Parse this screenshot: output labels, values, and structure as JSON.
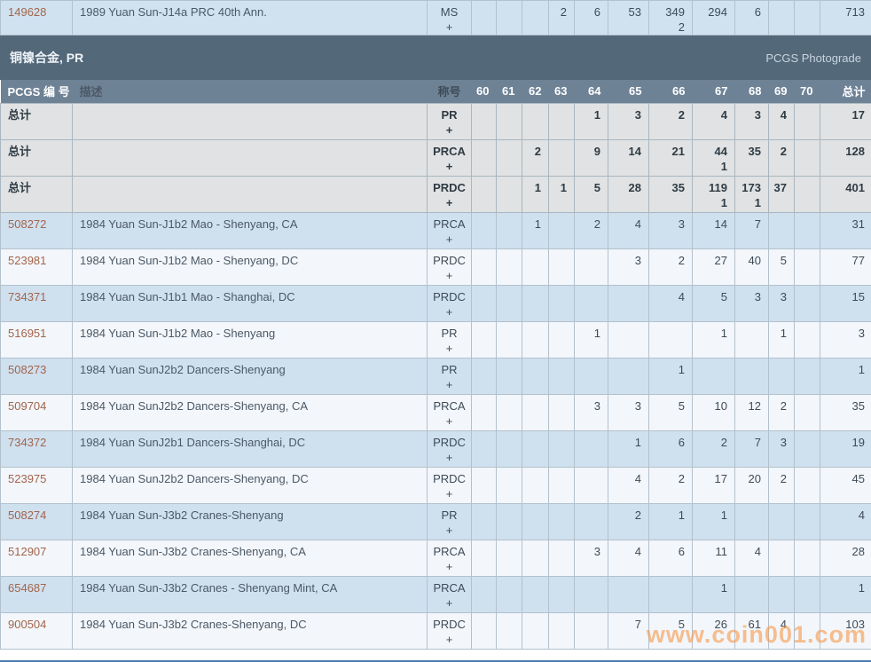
{
  "section": {
    "title": "铜镍合金, PR",
    "right_label": "PCGS Photograde"
  },
  "watermark": "www.coin001.com",
  "plus_sign": "+",
  "columns": {
    "pcgs": "PCGS 编 号",
    "description": "描述",
    "designation": "称号",
    "total": "总计",
    "grades": [
      "60",
      "61",
      "62",
      "63",
      "64",
      "65",
      "66",
      "67",
      "68",
      "69",
      "70"
    ]
  },
  "totals_label": "总计",
  "top_row": {
    "pcgs": "149628",
    "desc": "1989 Yuan Sun-J14a PRC 40th Ann.",
    "designation": "MS",
    "values": [
      "",
      "",
      "",
      "2",
      "6",
      "53",
      "349",
      "294",
      "6",
      "",
      ""
    ],
    "subs": [
      "",
      "",
      "",
      "",
      "",
      "",
      "2",
      "",
      "",
      "",
      ""
    ],
    "total": "713"
  },
  "rows": [
    {
      "kind": "totals",
      "pcgs": "总计",
      "desc": "",
      "designation": "PR",
      "values": [
        "",
        "",
        "",
        "",
        "1",
        "3",
        "2",
        "4",
        "3",
        "4",
        ""
      ],
      "subs": [
        "",
        "",
        "",
        "",
        "",
        "",
        "",
        "",
        "",
        "",
        ""
      ],
      "total": "17"
    },
    {
      "kind": "totals",
      "pcgs": "总计",
      "desc": "",
      "designation": "PRCA",
      "values": [
        "",
        "",
        "2",
        "",
        "9",
        "14",
        "21",
        "44",
        "35",
        "2",
        ""
      ],
      "subs": [
        "",
        "",
        "",
        "",
        "",
        "",
        "",
        "1",
        "",
        "",
        ""
      ],
      "total": "128"
    },
    {
      "kind": "totals",
      "pcgs": "总计",
      "desc": "",
      "designation": "PRDC",
      "values": [
        "",
        "",
        "1",
        "1",
        "5",
        "28",
        "35",
        "119",
        "173",
        "37",
        ""
      ],
      "subs": [
        "",
        "",
        "",
        "",
        "",
        "",
        "",
        "1",
        "1",
        "",
        ""
      ],
      "total": "401"
    },
    {
      "kind": "data",
      "pcgs": "508272",
      "desc": "1984 Yuan Sun-J1b2 Mao - Shenyang, CA",
      "designation": "PRCA",
      "values": [
        "",
        "",
        "1",
        "",
        "2",
        "4",
        "3",
        "14",
        "7",
        "",
        ""
      ],
      "total": "31"
    },
    {
      "kind": "data",
      "pcgs": "523981",
      "desc": "1984 Yuan Sun-J1b2 Mao - Shenyang, DC",
      "designation": "PRDC",
      "values": [
        "",
        "",
        "",
        "",
        "",
        "3",
        "2",
        "27",
        "40",
        "5",
        ""
      ],
      "total": "77"
    },
    {
      "kind": "data",
      "pcgs": "734371",
      "desc": "1984 Yuan Sun-J1b1 Mao - Shanghai, DC",
      "designation": "PRDC",
      "values": [
        "",
        "",
        "",
        "",
        "",
        "",
        "4",
        "5",
        "3",
        "3",
        ""
      ],
      "total": "15"
    },
    {
      "kind": "data",
      "pcgs": "516951",
      "desc": "1984 Yuan Sun-J1b2 Mao - Shenyang",
      "designation": "PR",
      "values": [
        "",
        "",
        "",
        "",
        "1",
        "",
        "",
        "1",
        "",
        "1",
        ""
      ],
      "total": "3"
    },
    {
      "kind": "data",
      "pcgs": "508273",
      "desc": "1984 Yuan SunJ2b2 Dancers-Shenyang",
      "designation": "PR",
      "values": [
        "",
        "",
        "",
        "",
        "",
        "",
        "1",
        "",
        "",
        "",
        ""
      ],
      "total": "1"
    },
    {
      "kind": "data",
      "pcgs": "509704",
      "desc": "1984 Yuan SunJ2b2 Dancers-Shenyang, CA",
      "designation": "PRCA",
      "values": [
        "",
        "",
        "",
        "",
        "3",
        "3",
        "5",
        "10",
        "12",
        "2",
        ""
      ],
      "total": "35"
    },
    {
      "kind": "data",
      "pcgs": "734372",
      "desc": "1984 Yuan SunJ2b1 Dancers-Shanghai, DC",
      "designation": "PRDC",
      "values": [
        "",
        "",
        "",
        "",
        "",
        "1",
        "6",
        "2",
        "7",
        "3",
        ""
      ],
      "total": "19"
    },
    {
      "kind": "data",
      "pcgs": "523975",
      "desc": "1984 Yuan SunJ2b2 Dancers-Shenyang, DC",
      "designation": "PRDC",
      "values": [
        "",
        "",
        "",
        "",
        "",
        "4",
        "2",
        "17",
        "20",
        "2",
        ""
      ],
      "total": "45"
    },
    {
      "kind": "data",
      "pcgs": "508274",
      "desc": "1984 Yuan Sun-J3b2 Cranes-Shenyang",
      "designation": "PR",
      "values": [
        "",
        "",
        "",
        "",
        "",
        "2",
        "1",
        "1",
        "",
        "",
        ""
      ],
      "total": "4"
    },
    {
      "kind": "data",
      "pcgs": "512907",
      "desc": "1984 Yuan Sun-J3b2 Cranes-Shenyang, CA",
      "designation": "PRCA",
      "values": [
        "",
        "",
        "",
        "",
        "3",
        "4",
        "6",
        "11",
        "4",
        "",
        ""
      ],
      "total": "28"
    },
    {
      "kind": "data",
      "pcgs": "654687",
      "desc": "1984 Yuan Sun-J3b2 Cranes - Shenyang Mint, CA",
      "designation": "PRCA",
      "values": [
        "",
        "",
        "",
        "",
        "",
        "",
        "",
        "1",
        "",
        "",
        ""
      ],
      "total": "1"
    },
    {
      "kind": "data",
      "pcgs": "900504",
      "desc": "1984 Yuan Sun-J3b2 Cranes-Shenyang, DC",
      "designation": "PRDC",
      "values": [
        "",
        "",
        "",
        "",
        "",
        "7",
        "5",
        "26",
        "61",
        "4",
        ""
      ],
      "total": "103"
    }
  ],
  "colors": {
    "section_bar": "#536879",
    "header_bar": "#6e8296",
    "row_blue": "#cfe0ef",
    "row_white": "#f3f6fa",
    "row_totals": "#e0e2e3",
    "pcgs_link": "#a2654c",
    "watermark": "#f79b4d",
    "bottom_border": "#4a7dae"
  }
}
